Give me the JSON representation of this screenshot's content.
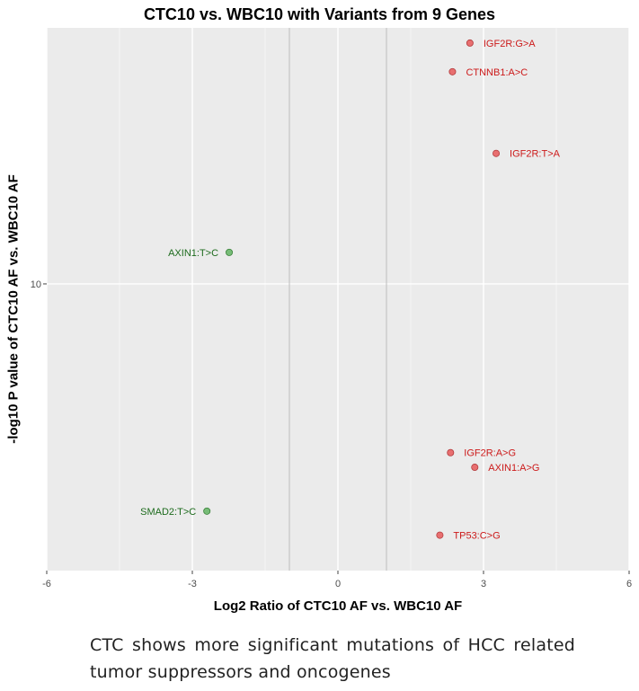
{
  "chart_data": {
    "type": "scatter",
    "title": "CTC10 vs. WBC10 with Variants from 9 Genes",
    "xlabel": "Log2 Ratio of CTC10 AF vs. WBC10 AF",
    "ylabel": "-log10 P value of CTC10 AF vs. WBC10 AF",
    "xlim": [
      -6,
      6
    ],
    "x_ticks": [
      -6,
      -3,
      0,
      3,
      6
    ],
    "x_tick_labels": [
      "-6",
      "-3",
      "0",
      "3",
      "6"
    ],
    "ylim": [
      6.7,
      14.3
    ],
    "y_log": true,
    "y_ticks": [
      10
    ],
    "y_tick_labels": [
      "10"
    ],
    "vlines": [
      -1,
      1
    ],
    "grid": true,
    "groups": [
      {
        "name": "up",
        "color": "#e8595b",
        "stroke": "#b23a3c",
        "label_color": "#cc1a1a"
      },
      {
        "name": "down",
        "color": "#63b463",
        "stroke": "#3a823a",
        "label_color": "#1d6b1d"
      }
    ],
    "points": [
      {
        "label": "IGF2R:G>A",
        "x": 2.72,
        "y": 14.0,
        "group": "up",
        "label_side": "right"
      },
      {
        "label": "CTNNB1:A>C",
        "x": 2.36,
        "y": 13.45,
        "group": "up",
        "label_side": "right"
      },
      {
        "label": "IGF2R:T>A",
        "x": 3.26,
        "y": 12.0,
        "group": "up",
        "label_side": "right"
      },
      {
        "label": "AXIN1:T>C",
        "x": -2.24,
        "y": 10.45,
        "group": "down",
        "label_side": "left"
      },
      {
        "label": "IGF2R:A>G",
        "x": 2.32,
        "y": 7.9,
        "group": "up",
        "label_side": "right"
      },
      {
        "label": "AXIN1:A>G",
        "x": 2.82,
        "y": 7.74,
        "group": "up",
        "label_side": "right"
      },
      {
        "label": "SMAD2:T>C",
        "x": -2.7,
        "y": 7.28,
        "group": "down",
        "label_side": "left"
      },
      {
        "label": "TP53:C>G",
        "x": 2.1,
        "y": 7.04,
        "group": "up",
        "label_side": "right"
      }
    ]
  },
  "caption": "CTC shows more significant mutations of HCC related tumor suppressors and oncogenes"
}
